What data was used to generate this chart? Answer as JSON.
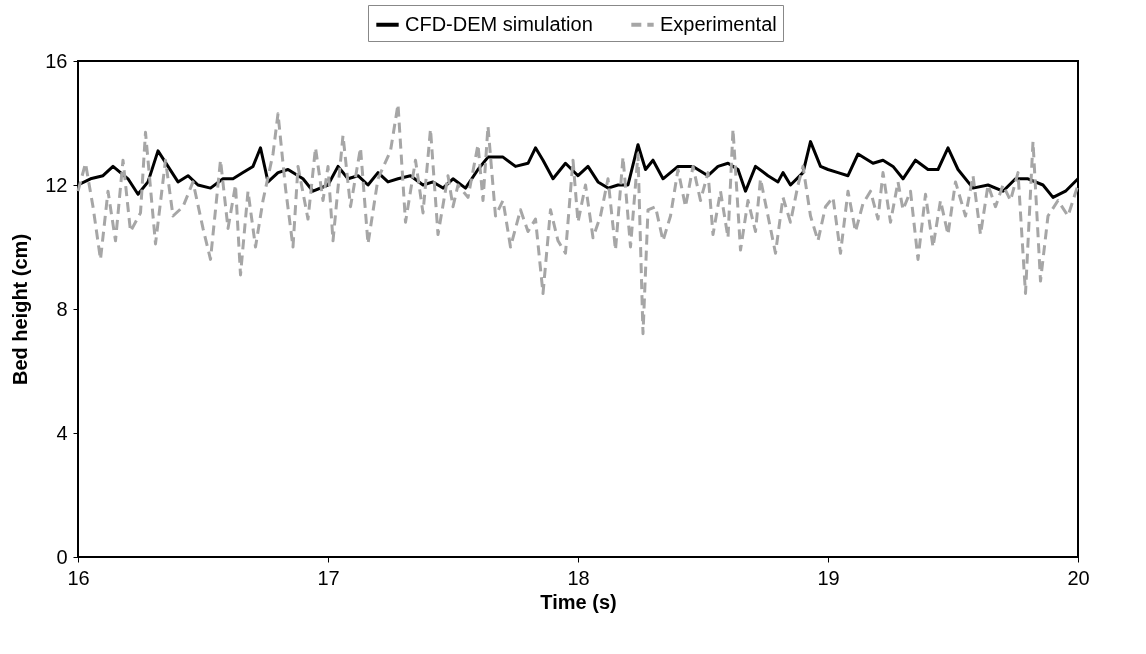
{
  "chart_data": {
    "type": "line",
    "xlabel": "Time (s)",
    "ylabel": "Bed height (cm)",
    "xlim": [
      16,
      20
    ],
    "xticks": [
      16,
      17,
      18,
      19,
      20
    ],
    "ylim": [
      0,
      16
    ],
    "yticks": [
      0,
      4,
      8,
      12,
      16
    ],
    "grid": false,
    "legend": "top",
    "marker": "none",
    "series": [
      {
        "name": "CFD-DEM simulation",
        "color": "#000000",
        "line_style": "solid",
        "x": [
          16.0,
          16.05,
          16.1,
          16.14,
          16.2,
          16.24,
          16.28,
          16.32,
          16.36,
          16.4,
          16.44,
          16.48,
          16.53,
          16.58,
          16.62,
          16.66,
          16.7,
          16.73,
          16.76,
          16.8,
          16.84,
          16.9,
          16.94,
          17.0,
          17.04,
          17.08,
          17.12,
          17.16,
          17.2,
          17.24,
          17.28,
          17.33,
          17.38,
          17.42,
          17.46,
          17.5,
          17.55,
          17.6,
          17.64,
          17.7,
          17.75,
          17.8,
          17.83,
          17.86,
          17.9,
          17.95,
          18.0,
          18.04,
          18.08,
          18.12,
          18.16,
          18.2,
          18.24,
          18.27,
          18.3,
          18.34,
          18.4,
          18.46,
          18.52,
          18.56,
          18.6,
          18.64,
          18.67,
          18.71,
          18.76,
          18.8,
          18.82,
          18.85,
          18.9,
          18.93,
          18.97,
          19.0,
          19.04,
          19.08,
          19.12,
          19.18,
          19.22,
          19.26,
          19.3,
          19.35,
          19.4,
          19.44,
          19.48,
          19.52,
          19.58,
          19.64,
          19.7,
          19.75,
          19.8,
          19.86,
          19.9,
          19.95,
          20.0
        ],
        "values": [
          12.0,
          12.2,
          12.3,
          12.6,
          12.2,
          11.7,
          12.1,
          13.1,
          12.6,
          12.1,
          12.3,
          12.0,
          11.9,
          12.2,
          12.2,
          12.4,
          12.6,
          13.2,
          12.1,
          12.4,
          12.5,
          12.2,
          11.8,
          12.0,
          12.6,
          12.2,
          12.3,
          12.0,
          12.4,
          12.1,
          12.2,
          12.3,
          12.0,
          12.1,
          11.9,
          12.2,
          11.9,
          12.5,
          12.9,
          12.9,
          12.6,
          12.7,
          13.2,
          12.8,
          12.2,
          12.7,
          12.3,
          12.6,
          12.1,
          11.9,
          12.0,
          12.0,
          13.3,
          12.5,
          12.8,
          12.2,
          12.6,
          12.6,
          12.3,
          12.6,
          12.7,
          12.5,
          11.8,
          12.6,
          12.3,
          12.1,
          12.4,
          12.0,
          12.4,
          13.4,
          12.6,
          12.5,
          12.4,
          12.3,
          13.0,
          12.7,
          12.8,
          12.6,
          12.2,
          12.8,
          12.5,
          12.5,
          13.2,
          12.5,
          11.9,
          12.0,
          11.8,
          12.2,
          12.2,
          12.0,
          11.6,
          11.8,
          12.2
        ]
      },
      {
        "name": "Experimental",
        "color": "#a6a6a6",
        "line_style": "dashed",
        "x": [
          16.0,
          16.03,
          16.06,
          16.09,
          16.12,
          16.15,
          16.18,
          16.21,
          16.25,
          16.27,
          16.31,
          16.35,
          16.38,
          16.42,
          16.46,
          16.5,
          16.53,
          16.57,
          16.6,
          16.63,
          16.65,
          16.68,
          16.71,
          16.74,
          16.78,
          16.8,
          16.83,
          16.86,
          16.88,
          16.92,
          16.95,
          16.98,
          17.0,
          17.02,
          17.06,
          17.09,
          17.13,
          17.16,
          17.2,
          17.25,
          17.28,
          17.31,
          17.35,
          17.38,
          17.41,
          17.44,
          17.48,
          17.5,
          17.52,
          17.56,
          17.6,
          17.62,
          17.64,
          17.67,
          17.7,
          17.73,
          17.77,
          17.8,
          17.83,
          17.86,
          17.89,
          17.92,
          17.95,
          17.98,
          18.0,
          18.03,
          18.06,
          18.09,
          18.12,
          18.15,
          18.18,
          18.21,
          18.24,
          18.26,
          18.28,
          18.31,
          18.34,
          18.37,
          18.4,
          18.43,
          18.46,
          18.49,
          18.52,
          18.54,
          18.57,
          18.6,
          18.62,
          18.65,
          18.68,
          18.71,
          18.73,
          18.76,
          18.79,
          18.82,
          18.85,
          18.88,
          18.9,
          18.93,
          18.96,
          18.99,
          19.02,
          19.05,
          19.08,
          19.11,
          19.14,
          19.17,
          19.2,
          19.22,
          19.25,
          19.28,
          19.3,
          19.33,
          19.36,
          19.39,
          19.42,
          19.45,
          19.48,
          19.51,
          19.55,
          19.58,
          19.61,
          19.64,
          19.67,
          19.7,
          19.73,
          19.76,
          19.79,
          19.82,
          19.85,
          19.88,
          19.92,
          19.96,
          20.0
        ],
        "values": [
          11.8,
          12.7,
          11.3,
          9.6,
          11.8,
          10.2,
          12.8,
          10.5,
          11.1,
          13.7,
          10.1,
          12.8,
          11.0,
          11.3,
          12.1,
          10.6,
          9.6,
          12.8,
          10.6,
          12.0,
          9.1,
          11.8,
          10.0,
          11.5,
          13.0,
          14.3,
          11.9,
          10.0,
          12.6,
          10.9,
          13.2,
          11.5,
          12.6,
          10.2,
          13.6,
          11.3,
          13.2,
          10.1,
          12.2,
          13.1,
          14.6,
          10.8,
          12.8,
          11.1,
          13.8,
          10.4,
          12.3,
          11.3,
          12.0,
          11.6,
          13.3,
          11.5,
          13.9,
          11.0,
          11.5,
          10.0,
          11.2,
          10.5,
          10.9,
          8.5,
          11.2,
          10.2,
          9.8,
          12.8,
          10.8,
          12.0,
          10.3,
          11.0,
          12.2,
          9.9,
          12.9,
          10.0,
          13.0,
          7.2,
          11.2,
          11.3,
          10.2,
          11.0,
          12.5,
          11.3,
          12.6,
          11.5,
          12.4,
          10.4,
          11.8,
          10.3,
          13.8,
          9.9,
          11.5,
          10.5,
          12.2,
          11.0,
          9.8,
          11.6,
          10.8,
          12.0,
          12.6,
          11.0,
          10.2,
          11.3,
          11.6,
          9.8,
          11.8,
          10.5,
          11.4,
          11.8,
          10.9,
          12.4,
          10.8,
          12.1,
          11.2,
          11.8,
          9.6,
          11.7,
          10.0,
          11.5,
          10.4,
          12.1,
          11.0,
          12.3,
          10.4,
          12.0,
          11.3,
          12.0,
          11.5,
          12.4,
          8.5,
          13.4,
          8.9,
          11.0,
          11.5,
          11.0,
          12.0
        ]
      }
    ]
  }
}
